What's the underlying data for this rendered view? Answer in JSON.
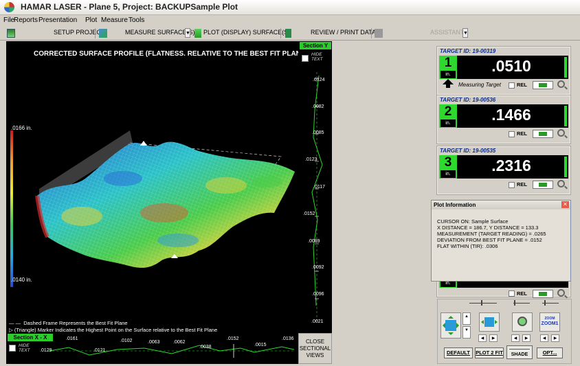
{
  "window": {
    "title": "HAMAR LASER - Plane 5, Project: BACKUPSample Plot"
  },
  "menu": [
    "File",
    "Reports",
    "Presentation",
    "Plot",
    "Measure",
    "Tools"
  ],
  "toolbar": {
    "setup_project": "SETUP PROJECT",
    "measure_surfaces": "MEASURE SURFACE(S)",
    "plot_surfaces": "PLOT (DISPLAY) SURFACE(S)",
    "review_print": "REVIEW / PRINT DATA",
    "assistant": "ASSISTANT"
  },
  "plot": {
    "title": "CORRECTED SURFACE PROFILE (FLATNESS. RELATIVE TO THE BEST FIT PLANE",
    "color_scale_max": ".0166 in.",
    "color_scale_min": ".0140 in.",
    "legend_line1": "Dashed Frame Represents the Best Fit Plane",
    "legend_line2": "(Triangle) Marker Indicates the Highest Point on the Surface relative to the Best Fit Plane"
  },
  "section_y": {
    "header": "Section Y",
    "hide_text": "HIDE TEXT",
    "values": [
      ".0124",
      ".0082",
      ".0085",
      ".0123",
      ".0117",
      ".0152",
      ".0089",
      ".0092",
      ".0096",
      ".0021"
    ]
  },
  "section_x": {
    "header": "Section X - X",
    "hide_text": "HIDE TEXT",
    "values": [
      ".0161",
      ".0129",
      ".0121",
      ".0102",
      ".0063",
      ".0062",
      ".0038",
      ".0152",
      ".0015",
      ".0136"
    ]
  },
  "close_sectional_views": "CLOSE SECTIONAL VIEWS",
  "targets": [
    {
      "id": "TARGET ID: 19-00319",
      "num": "1",
      "unit": "in.",
      "value": ".0510",
      "rel": "REL",
      "measuring": "Measuring Target"
    },
    {
      "id": "TARGET ID: 19-00536",
      "num": "2",
      "unit": "in.",
      "value": ".1466",
      "rel": "REL"
    },
    {
      "id": "TARGET ID: 19-00535",
      "num": "3",
      "unit": "in.",
      "value": ".2316",
      "rel": "REL"
    }
  ],
  "hidden_target": {
    "unit": "in.",
    "rel": "REL"
  },
  "plot_info": {
    "title": "Plot Information",
    "lines": [
      "CURSOR ON: Sample Surface",
      "X DISTANCE = 186.7, Y DISTANCE = 133.3",
      "MEASUREMENT (TARGET READING) = .0265",
      "DEVIATION FROM BEST FIT PLANE = .0152",
      "FLAT WITHIN (TIR): .0306"
    ]
  },
  "controls": {
    "default": "DEFAULT",
    "plot2fit": "PLOT 2 FIT",
    "shade": "SHADE",
    "opt": "OPT...",
    "zoom_label": "ZOOM",
    "zoom_value": "ZOOM1"
  },
  "colors": {
    "accent_green": "#2ed82e",
    "target_id_blue": "#0a2a8a"
  }
}
